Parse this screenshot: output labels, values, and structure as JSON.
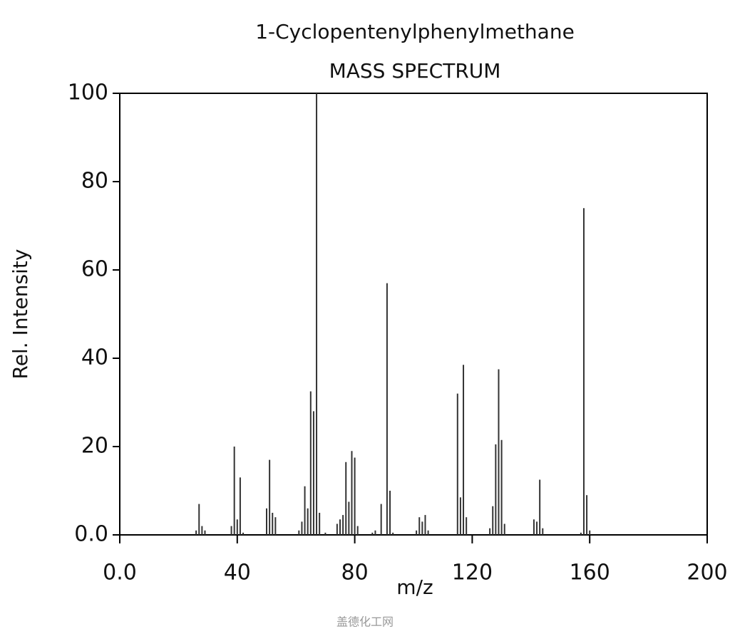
{
  "chart_data": {
    "type": "stem",
    "title": "1-Cyclopentenylphenylmethane",
    "subtitle": "MASS SPECTRUM",
    "x_label": "m/z",
    "y_label": "Rel. Intensity",
    "color": "#333333",
    "x": [
      26,
      27,
      28,
      29,
      38,
      39,
      40,
      41,
      42,
      50,
      51,
      52,
      53,
      61,
      62,
      63,
      64,
      65,
      66,
      67,
      68,
      70,
      74,
      75,
      76,
      77,
      78,
      79,
      80,
      81,
      86,
      87,
      89,
      91,
      92,
      93,
      101,
      102,
      103,
      104,
      105,
      115,
      116,
      117,
      118,
      126,
      127,
      128,
      129,
      130,
      131,
      141,
      142,
      143,
      144,
      157,
      158,
      159,
      160
    ],
    "values": [
      1,
      7,
      2,
      1,
      2,
      20,
      3.5,
      13,
      0.5,
      6,
      17,
      5,
      4,
      1,
      3,
      11,
      6,
      32.5,
      28,
      100,
      5,
      0.5,
      2.5,
      3.5,
      4.5,
      16.5,
      7.5,
      19,
      17.5,
      2,
      0.5,
      1,
      7,
      57,
      10,
      0.5,
      1,
      4,
      3,
      4.5,
      1,
      32,
      8.5,
      38.5,
      4,
      1.5,
      6.5,
      20.5,
      37.5,
      21.5,
      2.5,
      3.5,
      3,
      12.5,
      1.5,
      0.5,
      74,
      9,
      1
    ],
    "xlim": [
      0,
      200
    ],
    "ylim": [
      0,
      100
    ],
    "xticks": [
      {
        "value": 0,
        "label": "0.0"
      },
      40,
      80,
      120,
      160,
      200
    ],
    "yticks": [
      {
        "value": 0,
        "label": "0.0"
      },
      20,
      40,
      60,
      80,
      100
    ],
    "grid": false
  },
  "watermark": "盖德化工网"
}
